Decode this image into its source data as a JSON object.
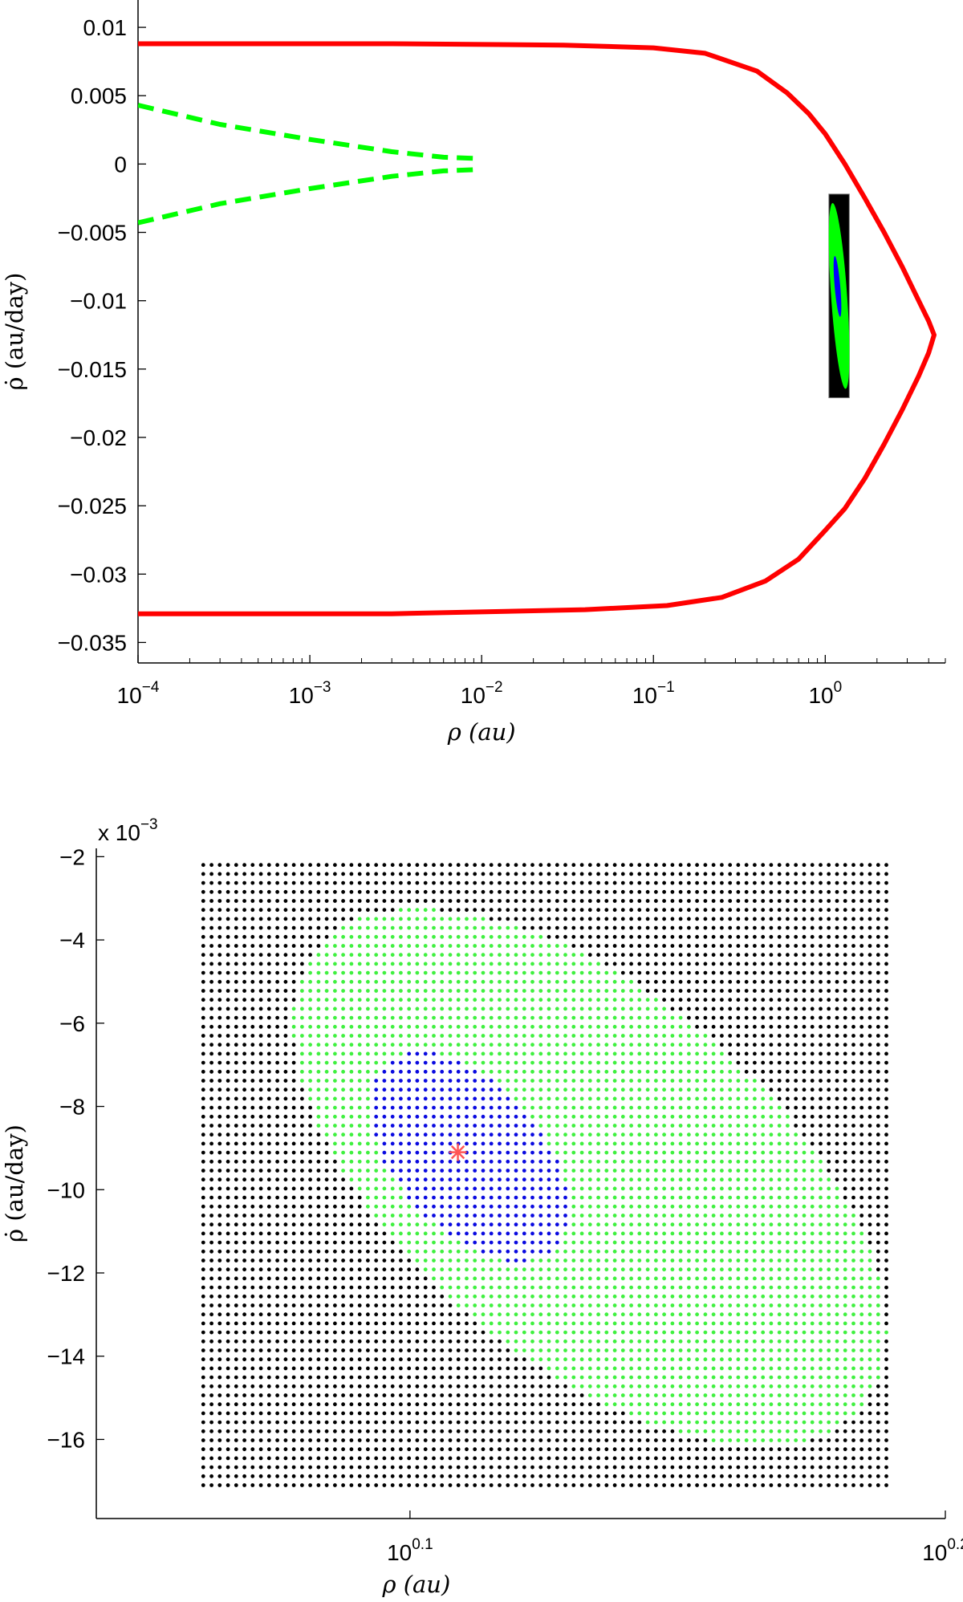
{
  "chart_data": [
    {
      "type": "line",
      "xscale": "log",
      "xlim": [
        0.0001,
        5
      ],
      "ylim": [
        -0.0365,
        0.012
      ],
      "xlabel": "ρ (au)",
      "ylabel": "ρ̇ (au/day)",
      "xticks": [
        {
          "value": 0.0001,
          "base": "10",
          "exp": "−4"
        },
        {
          "value": 0.001,
          "base": "10",
          "exp": "−3"
        },
        {
          "value": 0.01,
          "base": "10",
          "exp": "−2"
        },
        {
          "value": 0.1,
          "base": "10",
          "exp": "−1"
        },
        {
          "value": 1,
          "base": "10",
          "exp": "0"
        }
      ],
      "yticks": [
        {
          "value": 0.01,
          "label": "0.01"
        },
        {
          "value": 0.005,
          "label": "0.005"
        },
        {
          "value": 0,
          "label": "0"
        },
        {
          "value": -0.005,
          "label": "−0.005"
        },
        {
          "value": -0.01,
          "label": "−0.01"
        },
        {
          "value": -0.015,
          "label": "−0.015"
        },
        {
          "value": -0.02,
          "label": "−0.02"
        },
        {
          "value": -0.025,
          "label": "−0.025"
        },
        {
          "value": -0.03,
          "label": "−0.03"
        },
        {
          "value": -0.035,
          "label": "−0.035"
        }
      ],
      "series": [
        {
          "style": "solid",
          "color": "#ff0000",
          "points": [
            [
              0.0001,
              0.0088
            ],
            [
              0.003,
              0.0088
            ],
            [
              0.03,
              0.0087
            ],
            [
              0.1,
              0.0085
            ],
            [
              0.2,
              0.0081
            ],
            [
              0.4,
              0.0068
            ],
            [
              0.6,
              0.0052
            ],
            [
              0.8,
              0.0037
            ],
            [
              1.0,
              0.0022
            ],
            [
              1.3,
              0.0
            ],
            [
              1.7,
              -0.0025
            ],
            [
              2.2,
              -0.005
            ],
            [
              2.8,
              -0.0075
            ],
            [
              3.5,
              -0.01
            ],
            [
              4.0,
              -0.0115
            ],
            [
              4.3,
              -0.0125
            ],
            [
              4.0,
              -0.0138
            ],
            [
              3.5,
              -0.0155
            ],
            [
              2.8,
              -0.018
            ],
            [
              2.2,
              -0.0205
            ],
            [
              1.7,
              -0.023
            ],
            [
              1.3,
              -0.0252
            ],
            [
              1.0,
              -0.0268
            ],
            [
              0.7,
              -0.0289
            ],
            [
              0.45,
              -0.0305
            ],
            [
              0.25,
              -0.0317
            ],
            [
              0.12,
              -0.0323
            ],
            [
              0.04,
              -0.0326
            ],
            [
              0.003,
              -0.0329
            ],
            [
              0.0001,
              -0.0329
            ]
          ]
        },
        {
          "style": "dashed",
          "color": "#00ff00",
          "points": [
            [
              0.0001,
              0.0043
            ],
            [
              0.0003,
              0.0029
            ],
            [
              0.001,
              0.0018
            ],
            [
              0.003,
              0.0009
            ],
            [
              0.006,
              0.0005
            ],
            [
              0.0097,
              0.0004
            ]
          ]
        },
        {
          "style": "dashed",
          "color": "#00ff00",
          "points": [
            [
              0.0001,
              -0.0043
            ],
            [
              0.0003,
              -0.0029
            ],
            [
              0.001,
              -0.0018
            ],
            [
              0.003,
              -0.0009
            ],
            [
              0.006,
              -0.0005
            ],
            [
              0.0097,
              -0.0004
            ]
          ]
        }
      ],
      "inset": {
        "box_x": [
          1.05,
          1.38
        ],
        "box_y": [
          -0.0171,
          -0.0022
        ],
        "background": "#000000",
        "green_color": "#00ff00",
        "blue_color": "#0000ff"
      }
    },
    {
      "type": "scatter",
      "xscale": "log",
      "xlim": [
        1.1,
        1.5849
      ],
      "ylim": [
        -17.9,
        -1.8
      ],
      "exponent_label": "x 10",
      "exponent_sup": "−3",
      "xlabel": "ρ (au)",
      "ylabel": "ρ̇ (au/day)",
      "xticks": [
        {
          "value": 1.2589,
          "base": "10",
          "exp": "0.1"
        },
        {
          "value": 1.5849,
          "base": "10",
          "exp": "0.2"
        }
      ],
      "yticks": [
        {
          "value": -2,
          "label": "−2"
        },
        {
          "value": -4,
          "label": "−4"
        },
        {
          "value": -6,
          "label": "−6"
        },
        {
          "value": -8,
          "label": "−8"
        },
        {
          "value": -10,
          "label": "−10"
        },
        {
          "value": -12,
          "label": "−12"
        },
        {
          "value": -14,
          "label": "−14"
        },
        {
          "value": -16,
          "label": "−16"
        }
      ],
      "grid": {
        "x_range": [
          1.1518,
          1.5452
        ],
        "y_range": [
          -17.1,
          -2.2
        ],
        "nx": 84,
        "ny": 70
      },
      "regions": [
        {
          "name": "outside",
          "color": "#000000"
        },
        {
          "name": "green",
          "color": "#40f040",
          "center": [
            1.36,
            -9.7
          ],
          "semi_major": 8.55,
          "semi_minor": 4.4,
          "angle_deg": 40
        },
        {
          "name": "blue",
          "color": "#0a0ae0",
          "center": [
            1.291,
            -9.2
          ],
          "semi_major": 3.0,
          "semi_minor": 1.75,
          "angle_deg": 48
        }
      ],
      "marker": {
        "x": 1.2851,
        "y": -9.1,
        "color": "#ff5555"
      }
    }
  ]
}
